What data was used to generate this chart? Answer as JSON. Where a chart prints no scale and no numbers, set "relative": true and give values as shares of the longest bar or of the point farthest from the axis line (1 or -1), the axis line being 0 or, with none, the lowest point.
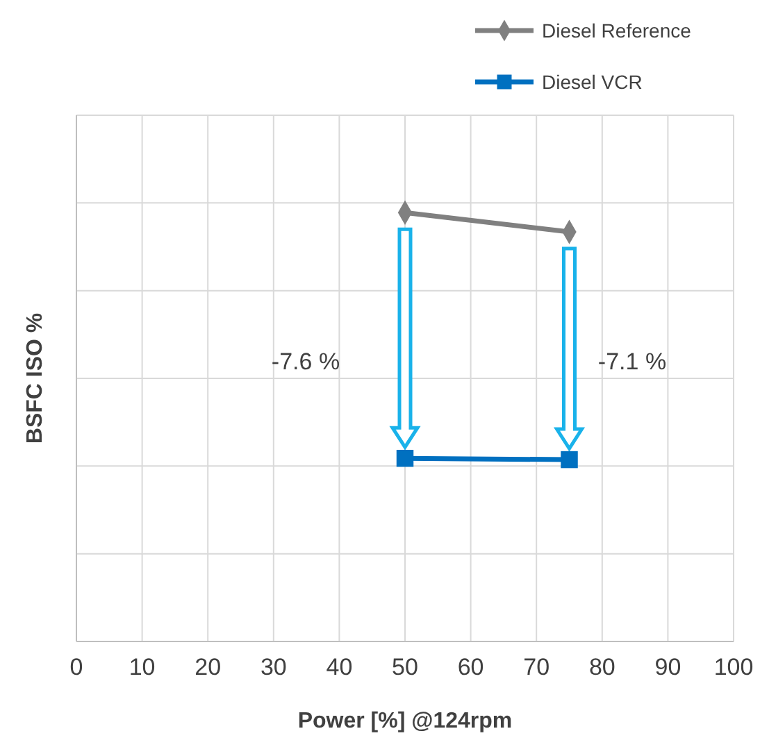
{
  "chart_data": {
    "type": "line",
    "xlabel": "Power [%] @124rpm",
    "ylabel": "BSFC ISO %",
    "relative": true,
    "xlim": [
      0,
      100
    ],
    "xticks": [
      0,
      10,
      20,
      30,
      40,
      50,
      60,
      70,
      80,
      90,
      100
    ],
    "grid": true,
    "legend": "top right",
    "x": [
      50,
      75
    ],
    "series": [
      {
        "name": "Diesel Reference",
        "color": "#808080",
        "marker": "diamond",
        "values": [
          1,
          0.955
        ]
      },
      {
        "name": "Diesel VCR",
        "color": "#0070c0",
        "marker": "square",
        "values": [
          0.427,
          0.424
        ]
      }
    ],
    "annotations": [
      "-7.6 %",
      "-7.1 %"
    ]
  }
}
